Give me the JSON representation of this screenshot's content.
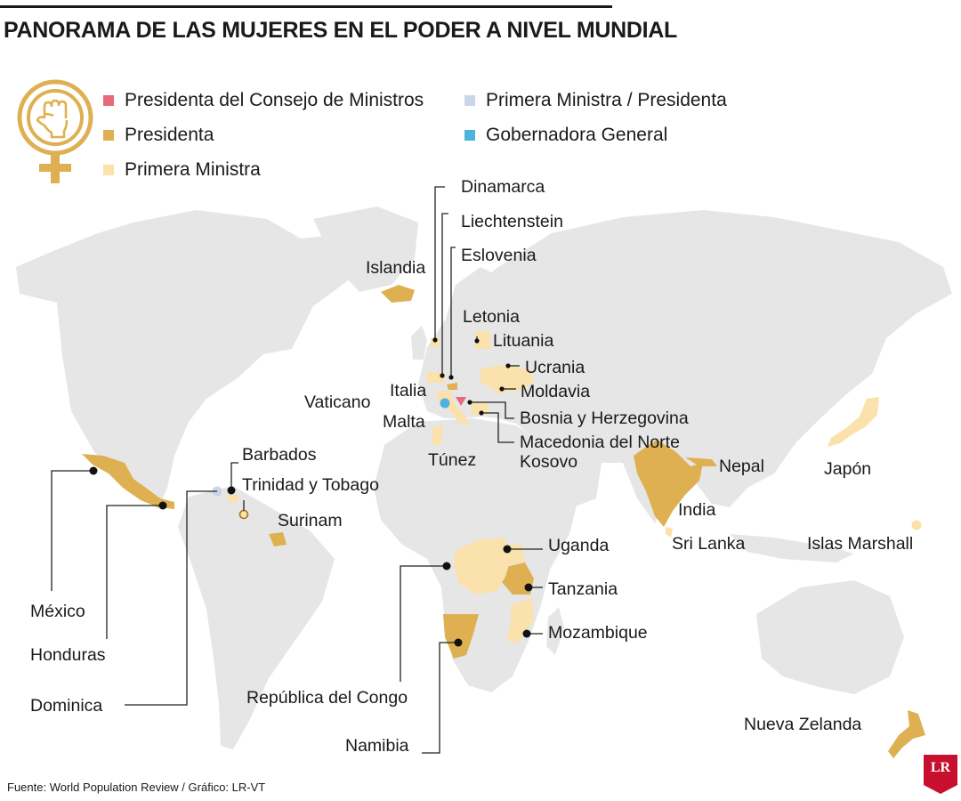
{
  "title": "PANORAMA DE LAS MUJERES EN EL PODER A NIVEL MUNDIAL",
  "legend": [
    {
      "label": "Presidenta del Consejo de Ministros",
      "color": "#e56a7a"
    },
    {
      "label": "Primera Ministra / Presidenta",
      "color": "#c9d6e8"
    },
    {
      "label": "Presidenta",
      "color": "#deb052"
    },
    {
      "label": "Gobernadora General",
      "color": "#4eb3dc"
    },
    {
      "label": "Primera Ministra",
      "color": "#fbe1ab"
    }
  ],
  "colors": {
    "land": "#e6e6e6",
    "presidenta": "#deb052",
    "primera_ministra": "#fbe1ab",
    "consejo": "#e56a7a",
    "mixto": "#c9d6e8",
    "gobernadora": "#4eb3dc",
    "lines": "#222222",
    "emblem": "#deb052"
  },
  "countries": {
    "dinamarca": "Dinamarca",
    "liechtenstein": "Liechtenstein",
    "eslovenia": "Eslovenia",
    "islandia": "Islandia",
    "letonia": "Letonia",
    "lituania": "Lituania",
    "ucrania": "Ucrania",
    "italia": "Italia",
    "moldavia": "Moldavia",
    "vaticano": "Vaticano",
    "bosnia": "Bosnia y Herzegovina",
    "malta": "Malta",
    "macedonia": "Macedonia del Norte",
    "tunez": "Túnez",
    "kosovo": "Kosovo",
    "barbados": "Barbados",
    "trinidad": "Trinidad y Tobago",
    "nepal": "Nepal",
    "japon": "Japón",
    "surinam": "Surinam",
    "india": "India",
    "uganda": "Uganda",
    "srilanka": "Sri Lanka",
    "marshall": "Islas Marshall",
    "tanzania": "Tanzania",
    "mexico": "México",
    "mozambique": "Mozambique",
    "honduras": "Honduras",
    "congo": "República del Congo",
    "dominica": "Dominica",
    "nzelanda": "Nueva Zelanda",
    "namibia": "Namibia"
  },
  "footer": "Fuente: World Population Review / Gráfico: LR-VT",
  "logo": "LR"
}
